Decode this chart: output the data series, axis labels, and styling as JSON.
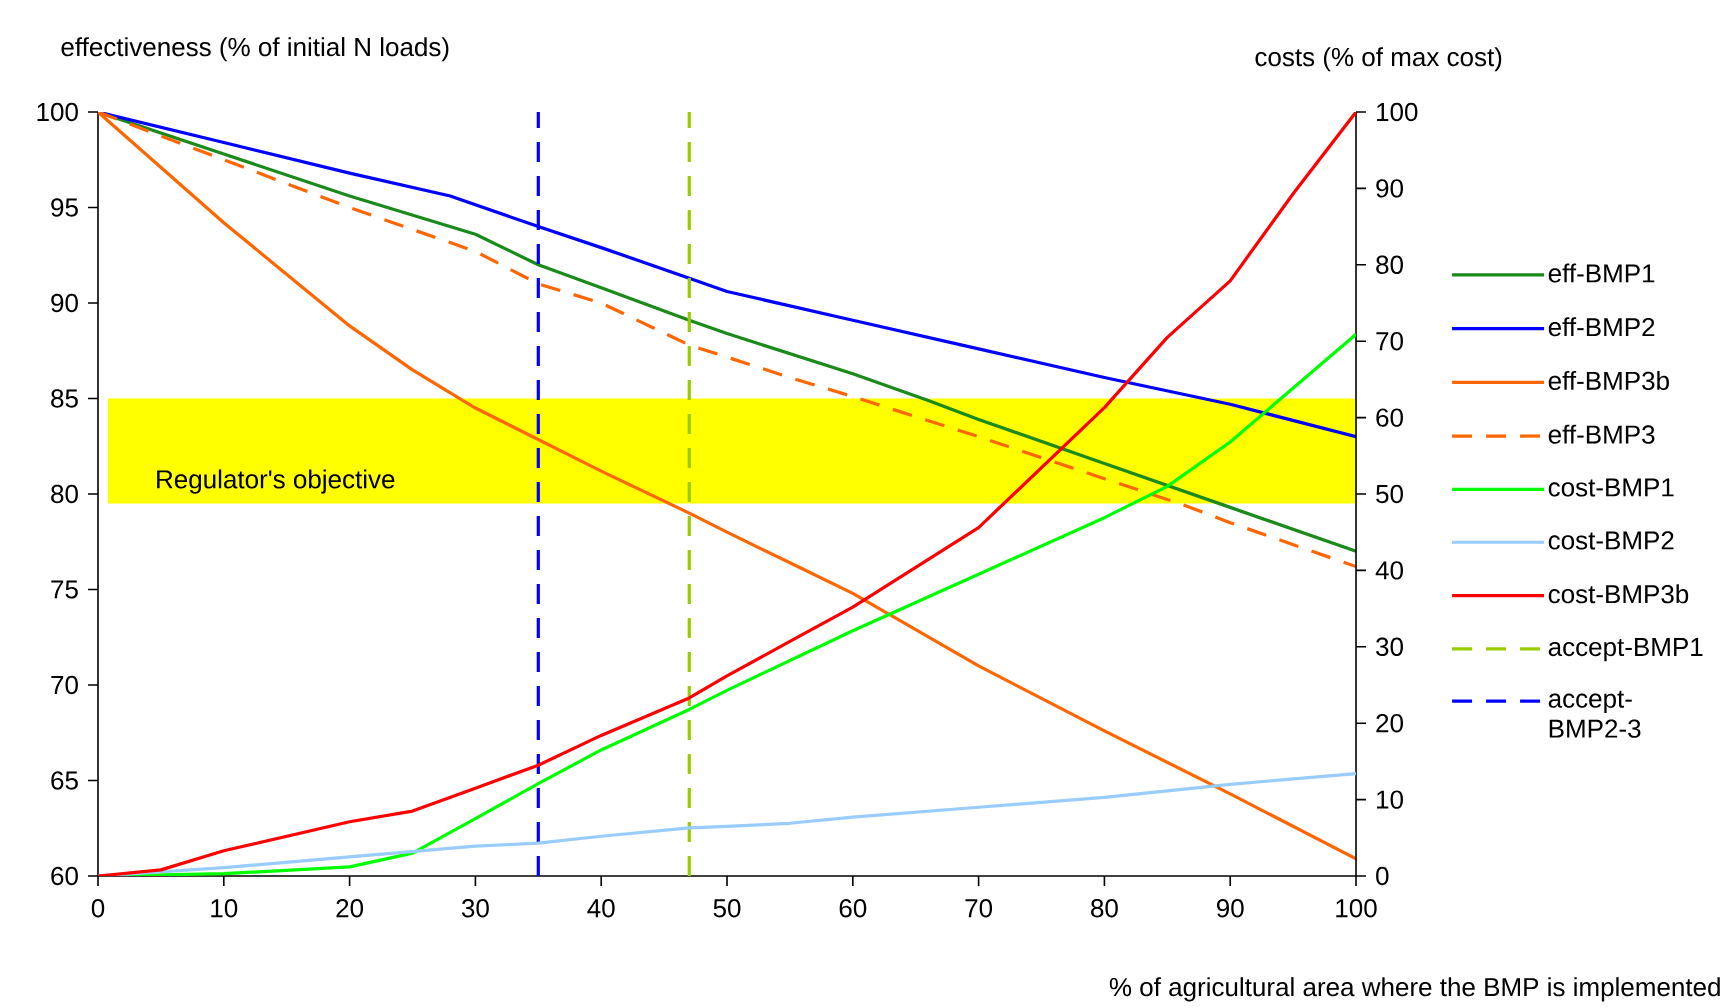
{
  "chart_data": {
    "type": "line",
    "xlabel": "% of agricultural area where the BMP is implemented",
    "ylabel": "effectiveness (% of initial N loads)",
    "y2label": "costs (% of max cost)",
    "xlim": [
      0,
      100
    ],
    "ylim": [
      60,
      100
    ],
    "y2lim": [
      0,
      100
    ],
    "xticks": [
      0,
      10,
      20,
      30,
      40,
      50,
      60,
      70,
      80,
      90,
      100
    ],
    "yticks": [
      60,
      65,
      70,
      75,
      80,
      85,
      90,
      95,
      100
    ],
    "y2ticks": [
      0,
      10,
      20,
      30,
      40,
      50,
      60,
      70,
      80,
      90,
      100
    ],
    "grid": false,
    "legend": "right",
    "marker": "none",
    "bands": [
      {
        "axis": "y",
        "from": 79.5,
        "to": 85,
        "label": "Regulator's objective",
        "color": "#ffff00"
      }
    ],
    "series": [
      {
        "name": "eff-BMP1",
        "color": "#1a8a1a",
        "line_style": "solid",
        "x": [
          0,
          10,
          20,
          30,
          35,
          40,
          47,
          50,
          60,
          66,
          70,
          80,
          90,
          100
        ],
        "values": [
          100,
          97.8,
          95.6,
          93.6,
          92,
          90.8,
          89.1,
          88.4,
          86.3,
          84.9,
          83.9,
          81.6,
          79.3,
          77.0
        ]
      },
      {
        "name": "eff-BMP2",
        "color": "#0000ff",
        "line_style": "solid",
        "x": [
          0,
          10,
          20,
          28,
          35,
          40,
          47,
          50,
          60,
          70,
          80,
          90,
          100
        ],
        "values": [
          100,
          98.4,
          96.8,
          95.6,
          94,
          92.9,
          91.3,
          90.6,
          89.1,
          87.6,
          86.1,
          84.7,
          83
        ]
      },
      {
        "name": "eff-BMP3b",
        "color": "#ff6600",
        "line_style": "solid",
        "x": [
          0,
          10,
          20,
          25,
          30,
          40,
          47,
          50,
          55,
          60,
          70,
          80,
          90,
          100
        ],
        "values": [
          100,
          94.2,
          88.8,
          86.5,
          84.5,
          81.2,
          79,
          78,
          76.4,
          74.8,
          71,
          67.6,
          64.3,
          60.9
        ]
      },
      {
        "name": "eff-BMP3",
        "color": "#ff6600",
        "line_style": "dashed",
        "x": [
          0,
          10,
          20,
          30,
          35,
          40,
          47,
          55,
          60,
          70,
          80,
          86,
          90,
          100
        ],
        "values": [
          100,
          97.5,
          95,
          92.7,
          91,
          90,
          87.8,
          86.1,
          85.1,
          83,
          80.8,
          79.5,
          78.5,
          76.2
        ]
      },
      {
        "name": "cost-BMP1",
        "color": "#00ff00",
        "line_style": "solid",
        "axis": "y2",
        "x": [
          0,
          10,
          20,
          25,
          30,
          35,
          40,
          47,
          50,
          60,
          70,
          80,
          85,
          90,
          100
        ],
        "values": [
          0,
          0.3,
          1.2,
          3,
          7.5,
          12.1,
          16.5,
          21.8,
          24.3,
          32.1,
          39.5,
          46.9,
          51,
          56.8,
          70.9
        ]
      },
      {
        "name": "cost-BMP2",
        "color": "#99ccff",
        "line_style": "solid",
        "axis": "y2",
        "x": [
          0,
          10,
          20,
          30,
          35,
          40,
          47,
          50,
          55,
          60,
          70,
          80,
          90,
          100
        ],
        "values": [
          0,
          1.1,
          2.5,
          3.9,
          4.3,
          5.2,
          6.3,
          6.5,
          6.9,
          7.7,
          9,
          10.3,
          12,
          13.4
        ]
      },
      {
        "name": "cost-BMP3b",
        "color": "#ff0000",
        "line_style": "solid",
        "axis": "y2",
        "x": [
          0,
          5,
          10,
          20,
          25,
          30,
          35,
          40,
          47,
          50,
          55,
          60,
          70,
          80,
          85,
          90,
          95,
          100
        ],
        "values": [
          0,
          0.8,
          3.3,
          7.1,
          8.5,
          11.5,
          14.5,
          18.4,
          23.3,
          26.2,
          30.7,
          35.2,
          45.6,
          61.3,
          70.5,
          77.9,
          89.3,
          100
        ]
      },
      {
        "name": "accept-BMP1",
        "color": "#99cc00",
        "line_style": "dashed",
        "x": [
          47,
          47
        ],
        "values": [
          60,
          100
        ]
      },
      {
        "name": "accept-BMP2-3",
        "color": "#0000ff",
        "line_style": "dashed",
        "x": [
          35,
          35
        ],
        "values": [
          60,
          100
        ]
      }
    ]
  }
}
